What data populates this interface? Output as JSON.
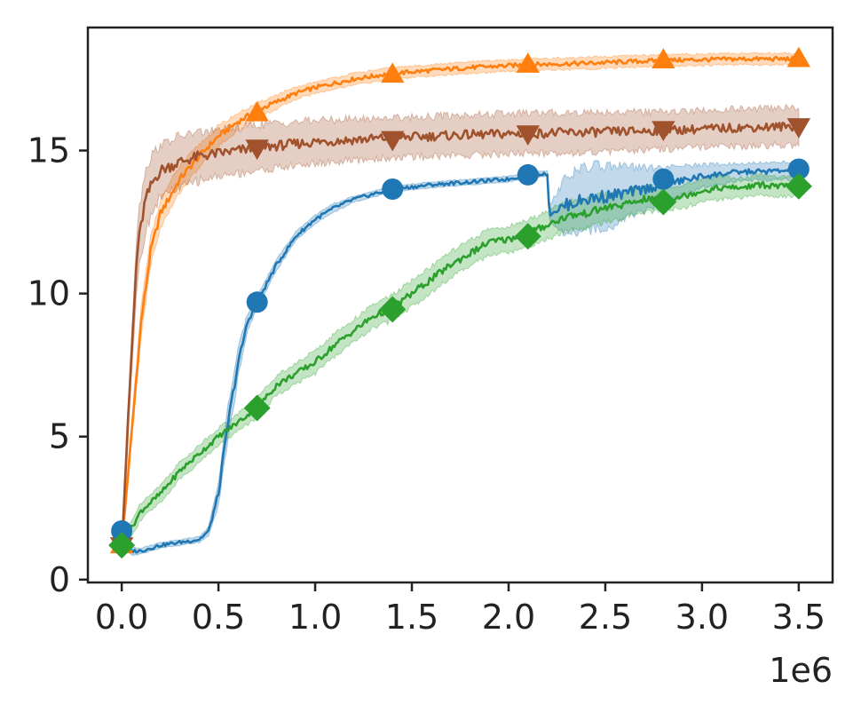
{
  "chart_data": {
    "type": "line",
    "title": "",
    "xlabel": "",
    "ylabel": "",
    "x_offset_label": "1e6",
    "xlim": [
      -0.175,
      3.675
    ],
    "ylim": [
      -0.1,
      19.3
    ],
    "x_ticks": [
      0.0,
      0.5,
      1.0,
      1.5,
      2.0,
      2.5,
      3.0,
      3.5
    ],
    "x_tick_labels": [
      "0.0",
      "0.5",
      "1.0",
      "1.5",
      "2.0",
      "2.5",
      "3.0",
      "3.5"
    ],
    "y_ticks": [
      0,
      5,
      10,
      15
    ],
    "y_tick_labels": [
      "0",
      "5",
      "10",
      "15"
    ],
    "grid": false,
    "legend": "none",
    "series": [
      {
        "color": "#ff7f0e",
        "marker": "triangle-up",
        "x": [
          0,
          0.05,
          0.1,
          0.15,
          0.2,
          0.3,
          0.4,
          0.5,
          0.6,
          0.7,
          0.8,
          0.9,
          1.0,
          1.2,
          1.4,
          1.6,
          1.8,
          2.1,
          2.4,
          2.8,
          3.2,
          3.5
        ],
        "y": [
          1.2,
          5.0,
          9.0,
          11.5,
          12.8,
          14.0,
          14.8,
          15.5,
          16.0,
          16.4,
          16.7,
          17.0,
          17.2,
          17.5,
          17.7,
          17.8,
          17.9,
          18.0,
          18.05,
          18.15,
          18.2,
          18.2
        ],
        "band": [
          0.35,
          0.35,
          0.5,
          0.5,
          0.5,
          0.45,
          0.4,
          0.35,
          0.3,
          0.25,
          0.25,
          0.2,
          0.2,
          0.2,
          0.2,
          0.2,
          0.2,
          0.2,
          0.2,
          0.2,
          0.2,
          0.2
        ],
        "markers_x": [
          0,
          0.7,
          1.4,
          2.1,
          2.8,
          3.5
        ],
        "markers_y": [
          1.2,
          16.3,
          17.65,
          18.0,
          18.15,
          18.2
        ]
      },
      {
        "color": "#a0522d",
        "marker": "triangle-down",
        "x": [
          0,
          0.04,
          0.08,
          0.12,
          0.16,
          0.2,
          0.3,
          0.4,
          0.5,
          0.7,
          1.0,
          1.4,
          1.8,
          2.1,
          2.5,
          2.8,
          3.2,
          3.5
        ],
        "y": [
          1.2,
          6.5,
          11.5,
          13.2,
          13.9,
          14.3,
          14.6,
          14.8,
          14.9,
          15.1,
          15.3,
          15.45,
          15.55,
          15.6,
          15.65,
          15.7,
          15.8,
          15.85
        ],
        "band": [
          0.4,
          0.6,
          1.0,
          1.1,
          1.0,
          0.9,
          0.9,
          0.85,
          0.8,
          0.8,
          0.75,
          0.7,
          0.7,
          0.7,
          0.7,
          0.65,
          0.65,
          0.65
        ],
        "markers_x": [
          0,
          0.7,
          1.4,
          2.1,
          2.8,
          3.5
        ],
        "markers_y": [
          1.2,
          15.1,
          15.4,
          15.6,
          15.75,
          15.85
        ]
      },
      {
        "color": "#1f77b4",
        "marker": "circle",
        "x": [
          0,
          0.02,
          0.05,
          0.1,
          0.2,
          0.3,
          0.4,
          0.45,
          0.5,
          0.55,
          0.6,
          0.65,
          0.7,
          0.8,
          0.9,
          1.0,
          1.1,
          1.2,
          1.4,
          1.6,
          1.8,
          2.0,
          2.1,
          2.2,
          2.21,
          2.3,
          2.4,
          2.5,
          2.6,
          2.8,
          3.0,
          3.2,
          3.5
        ],
        "y": [
          1.7,
          1.4,
          1.0,
          1.0,
          1.2,
          1.3,
          1.4,
          1.7,
          3.0,
          5.5,
          7.5,
          9.0,
          9.7,
          11.0,
          12.0,
          12.6,
          13.0,
          13.3,
          13.65,
          13.8,
          13.9,
          14.0,
          14.15,
          14.2,
          12.8,
          13.1,
          13.3,
          13.4,
          13.5,
          13.8,
          14.1,
          14.25,
          14.3
        ],
        "band": [
          0.4,
          0.3,
          0.15,
          0.1,
          0.1,
          0.1,
          0.1,
          0.15,
          0.4,
          0.6,
          0.5,
          0.3,
          0.2,
          0.2,
          0.15,
          0.15,
          0.15,
          0.1,
          0.1,
          0.1,
          0.1,
          0.1,
          0.1,
          0.1,
          0.3,
          1.0,
          1.1,
          1.1,
          0.9,
          0.6,
          0.4,
          0.3,
          0.3
        ],
        "markers_x": [
          0,
          0.7,
          1.4,
          2.1,
          2.8,
          3.5
        ],
        "markers_y": [
          1.7,
          9.7,
          13.65,
          14.15,
          14.0,
          14.35
        ]
      },
      {
        "color": "#2ca02c",
        "marker": "diamond",
        "x": [
          0,
          0.1,
          0.2,
          0.3,
          0.4,
          0.5,
          0.6,
          0.7,
          0.8,
          0.9,
          1.0,
          1.1,
          1.2,
          1.3,
          1.4,
          1.5,
          1.6,
          1.7,
          1.8,
          1.9,
          2.0,
          2.1,
          2.2,
          2.3,
          2.4,
          2.5,
          2.6,
          2.7,
          2.8,
          2.9,
          3.0,
          3.1,
          3.2,
          3.3,
          3.4,
          3.5
        ],
        "y": [
          1.2,
          2.4,
          3.0,
          3.8,
          4.4,
          5.0,
          5.5,
          6.0,
          6.8,
          7.2,
          7.6,
          8.2,
          8.7,
          9.2,
          9.5,
          10.0,
          10.5,
          11.0,
          11.4,
          11.8,
          11.9,
          12.1,
          12.4,
          12.7,
          12.8,
          13.0,
          13.1,
          13.3,
          13.3,
          13.4,
          13.6,
          13.7,
          13.7,
          13.8,
          13.75,
          13.75
        ],
        "band": [
          0.2,
          0.3,
          0.3,
          0.3,
          0.3,
          0.3,
          0.3,
          0.35,
          0.35,
          0.35,
          0.4,
          0.4,
          0.4,
          0.4,
          0.45,
          0.45,
          0.45,
          0.45,
          0.45,
          0.45,
          0.45,
          0.45,
          0.5,
          0.5,
          0.5,
          0.5,
          0.45,
          0.45,
          0.4,
          0.4,
          0.4,
          0.4,
          0.35,
          0.35,
          0.35,
          0.35
        ],
        "markers_x": [
          0,
          0.7,
          1.4,
          2.1,
          2.8,
          3.5
        ],
        "markers_y": [
          1.2,
          6.0,
          9.45,
          12.0,
          13.2,
          13.75
        ]
      }
    ]
  }
}
